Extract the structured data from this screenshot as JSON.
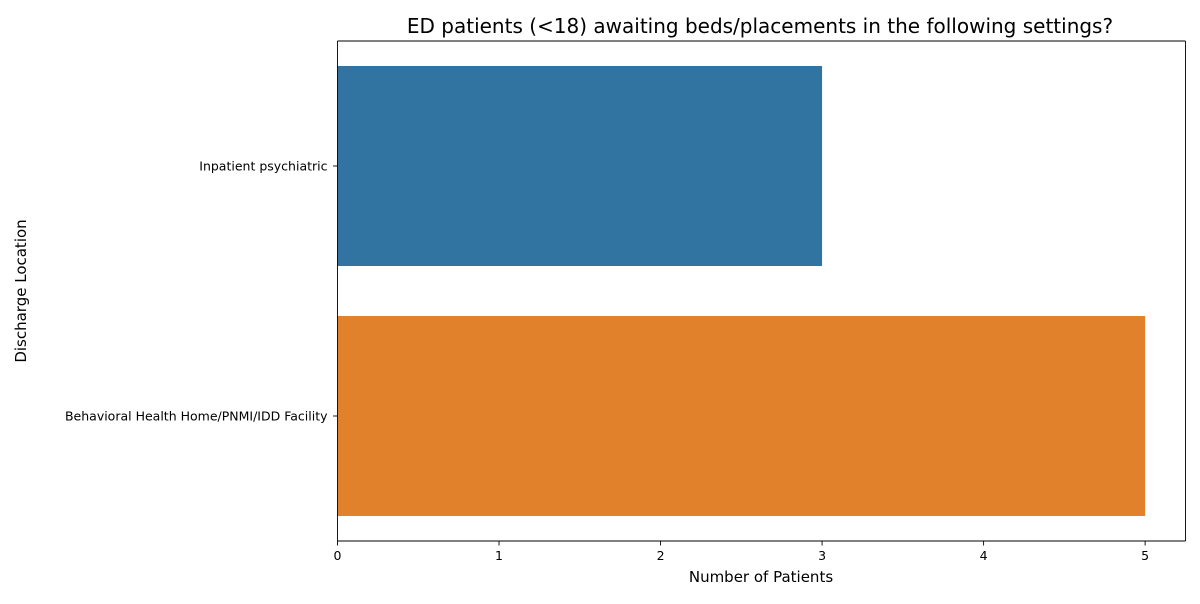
{
  "chart_data": {
    "type": "bar",
    "orientation": "horizontal",
    "title": "ED patients (<18) awaiting beds/placements in the following settings?",
    "xlabel": "Number of Patients",
    "ylabel": "Discharge Location",
    "categories": [
      "Inpatient psychiatric",
      "Behavioral Health Home/PNMI/IDD Facility"
    ],
    "values": [
      3,
      5
    ],
    "colors": [
      "#3274a1",
      "#e1812c"
    ],
    "xlim": [
      0,
      5.25
    ],
    "xticks": [
      0,
      1,
      2,
      3,
      4,
      5
    ],
    "xtick_labels": [
      "0",
      "1",
      "2",
      "3",
      "4",
      "5"
    ],
    "grid": false,
    "legend": "none"
  }
}
